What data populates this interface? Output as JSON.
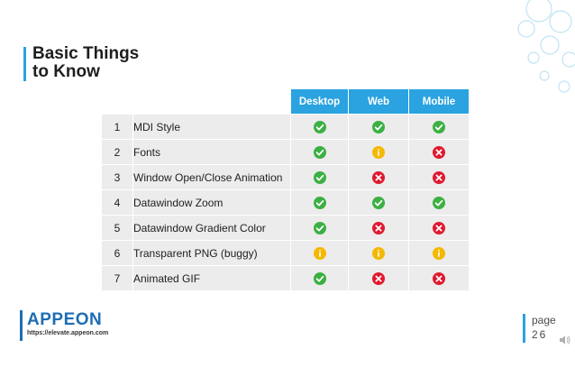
{
  "title": {
    "line1": "Basic Things",
    "line2": "to Know"
  },
  "table": {
    "headers": [
      "Desktop",
      "Web",
      "Mobile"
    ],
    "rows": [
      {
        "num": "1",
        "feature": "MDI Style",
        "desktop": "check",
        "web": "check",
        "mobile": "check"
      },
      {
        "num": "2",
        "feature": "Fonts",
        "desktop": "check",
        "web": "info",
        "mobile": "cross"
      },
      {
        "num": "3",
        "feature": "Window Open/Close Animation",
        "desktop": "check",
        "web": "cross",
        "mobile": "cross"
      },
      {
        "num": "4",
        "feature": "Datawindow Zoom",
        "desktop": "check",
        "web": "check",
        "mobile": "check"
      },
      {
        "num": "5",
        "feature": "Datawindow Gradient Color",
        "desktop": "check",
        "web": "cross",
        "mobile": "cross"
      },
      {
        "num": "6",
        "feature": "Transparent PNG (buggy)",
        "desktop": "info",
        "web": "info",
        "mobile": "info"
      },
      {
        "num": "7",
        "feature": "Animated GIF",
        "desktop": "check",
        "web": "cross",
        "mobile": "cross"
      }
    ]
  },
  "logo": {
    "text": "APPEON",
    "url": "https://elevate.appeon.com"
  },
  "page": {
    "label": "page",
    "number": "26"
  },
  "colors": {
    "accent": "#2aa3e0",
    "check": "#3cb043",
    "cross": "#e0192f",
    "info": "#f5b800",
    "cell_bg": "#ececec"
  }
}
